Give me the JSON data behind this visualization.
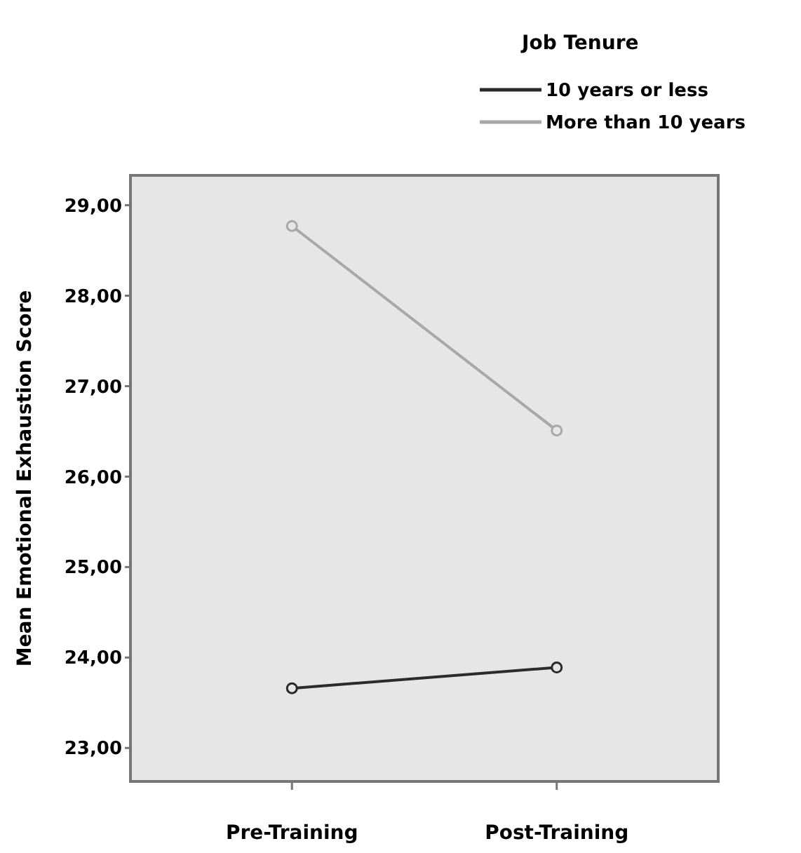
{
  "chart_data": {
    "type": "line",
    "ylabel": "Mean Emotional Exhaustion Score",
    "legend_title": "Job Tenure",
    "categories": [
      "Pre-Training",
      "Post-Training"
    ],
    "series": [
      {
        "name": "10 years or less",
        "color": "#2b2b2b",
        "values": [
          23.66,
          23.89
        ]
      },
      {
        "name": "More than 10 years",
        "color": "#a8a8a8",
        "values": [
          28.77,
          26.51
        ]
      }
    ],
    "ylim": [
      22.63,
      29.33
    ],
    "yticks": [
      {
        "value": 23,
        "label": "23,00"
      },
      {
        "value": 24,
        "label": "24,00"
      },
      {
        "value": 25,
        "label": "25,00"
      },
      {
        "value": 26,
        "label": "26,00"
      },
      {
        "value": 27,
        "label": "27,00"
      },
      {
        "value": 28,
        "label": "28,00"
      },
      {
        "value": 29,
        "label": "29,00"
      }
    ],
    "grid": false,
    "legend": "top right",
    "marker": "circle",
    "line_style": "solid"
  }
}
